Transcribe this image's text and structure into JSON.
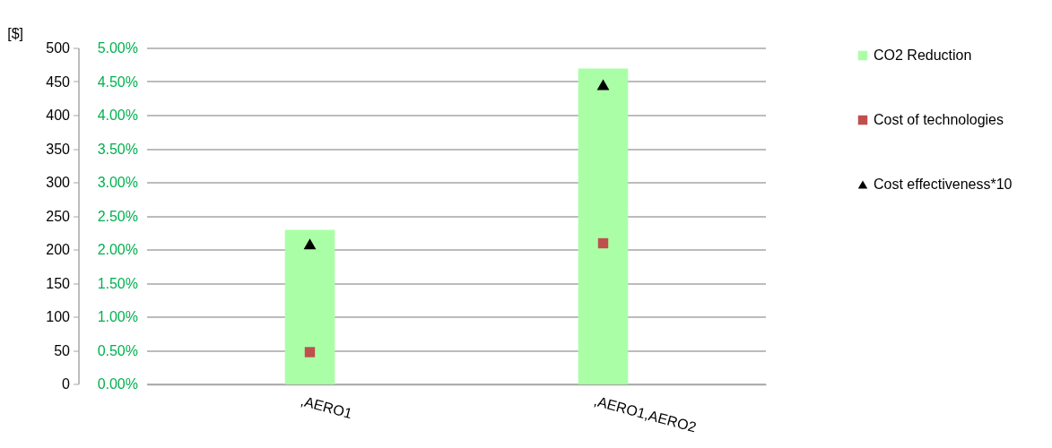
{
  "chart_data": {
    "type": "bar",
    "categories": [
      ",AERO1",
      ",AERO1,AERO2"
    ],
    "series": [
      {
        "name": "CO2 Reduction",
        "axis": "y2",
        "color": "#aaffa6",
        "values": [
          2.3,
          4.7
        ]
      },
      {
        "name": "Cost of technologies",
        "type": "scatter",
        "marker": "square",
        "color": "#c0504d",
        "values": [
          48,
          210
        ]
      },
      {
        "name": "Cost effectiveness*10",
        "type": "scatter",
        "marker": "triangle",
        "color": "#000000",
        "values": [
          209,
          446
        ]
      }
    ],
    "ylabel": "[$]",
    "ylim": [
      0,
      500
    ],
    "yticks": [
      0,
      50,
      100,
      150,
      200,
      250,
      300,
      350,
      400,
      450,
      500
    ],
    "y2lim": [
      0,
      5
    ],
    "y2ticks": [
      {
        "value": 0,
        "label": "0.00%"
      },
      {
        "value": 0.5,
        "label": "0.50%"
      },
      {
        "value": 1,
        "label": "1.00%"
      },
      {
        "value": 1.5,
        "label": "1.50%"
      },
      {
        "value": 2,
        "label": "2.00%"
      },
      {
        "value": 2.5,
        "label": "2.50%"
      },
      {
        "value": 3,
        "label": "3.00%"
      },
      {
        "value": 3.5,
        "label": "3.50%"
      },
      {
        "value": 4,
        "label": "4.00%"
      },
      {
        "value": 4.5,
        "label": "4.50%"
      },
      {
        "value": 5,
        "label": "5.00%"
      }
    ],
    "grid": "y",
    "legend": "right"
  }
}
